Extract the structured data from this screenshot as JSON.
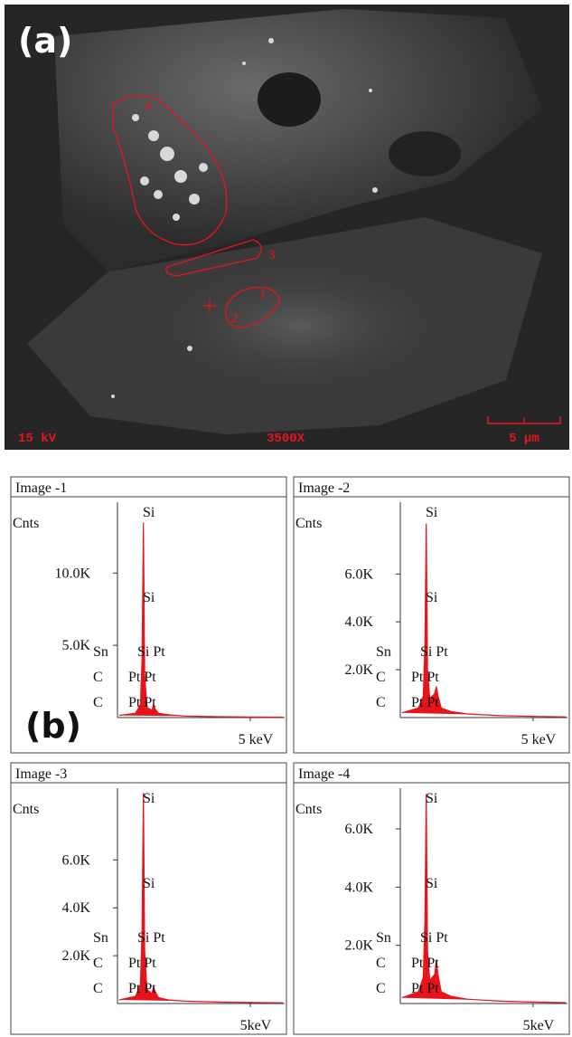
{
  "panel_a": {
    "label": "(a)",
    "voltage": "15 kV",
    "magnification": "3500X",
    "scale_bar": "5 µm",
    "regions": [
      "1",
      "2",
      "3",
      "4"
    ]
  },
  "panel_b_label": "(b)",
  "chart_data": [
    {
      "type": "spectrum",
      "title": "Image -1",
      "y_label": "Cnts",
      "color": "#e8141c",
      "x": [
        1.0,
        1.5,
        1.65,
        1.7,
        1.74,
        1.78,
        1.85,
        2.0,
        2.05,
        2.1,
        2.2,
        2.5,
        3.0,
        4.0,
        5.0,
        6.0
      ],
      "values": [
        150,
        300,
        900,
        4000,
        13500,
        3000,
        700,
        500,
        900,
        600,
        300,
        200,
        100,
        60,
        40,
        30
      ],
      "xlim": [
        0.95,
        6.05
      ],
      "ylim": [
        0,
        14900
      ],
      "xticks": [
        {
          "value": 5,
          "label": "5 keV"
        }
      ],
      "yticks": [
        {
          "value": 5000,
          "label": "5.0K"
        },
        {
          "value": 10000,
          "label": "10.0K"
        }
      ],
      "annotations": [
        "Si",
        "Si",
        "Sn",
        "Si Pt",
        "C",
        "Pt Pt",
        "C",
        "Pt Pt"
      ]
    },
    {
      "type": "spectrum",
      "title": "Image -2",
      "y_label": "Cnts",
      "color": "#e8141c",
      "x": [
        1.0,
        1.5,
        1.65,
        1.7,
        1.74,
        1.78,
        1.85,
        2.0,
        2.05,
        2.1,
        2.2,
        2.5,
        3.0,
        4.0,
        5.0,
        6.0
      ],
      "values": [
        200,
        400,
        900,
        3000,
        8100,
        2000,
        800,
        1000,
        1300,
        900,
        400,
        250,
        150,
        80,
        50,
        30
      ],
      "xlim": [
        0.95,
        6.05
      ],
      "ylim": [
        0,
        9000
      ],
      "xticks": [
        {
          "value": 5,
          "label": "5 keV"
        }
      ],
      "yticks": [
        {
          "value": 2000,
          "label": "2.0K"
        },
        {
          "value": 4000,
          "label": "4.0K"
        },
        {
          "value": 6000,
          "label": "6.0K"
        }
      ],
      "annotations": [
        "Si",
        "Si",
        "Sn",
        "Si Pt",
        "C",
        "Pt Pt",
        "C",
        "Pt Pt"
      ]
    },
    {
      "type": "spectrum",
      "title": "Image -3",
      "y_label": "Cnts",
      "color": "#e8141c",
      "x": [
        1.0,
        1.5,
        1.65,
        1.7,
        1.74,
        1.78,
        1.85,
        2.0,
        2.05,
        2.1,
        2.2,
        2.5,
        3.0,
        4.0,
        5.0,
        6.0
      ],
      "values": [
        150,
        300,
        800,
        3000,
        8800,
        2200,
        600,
        400,
        700,
        500,
        250,
        150,
        100,
        60,
        40,
        30
      ],
      "xlim": [
        0.95,
        6.05
      ],
      "ylim": [
        0,
        9000
      ],
      "xticks": [
        {
          "value": 5,
          "label": "5keV"
        }
      ],
      "yticks": [
        {
          "value": 2000,
          "label": "2.0K"
        },
        {
          "value": 4000,
          "label": "4.0K"
        },
        {
          "value": 6000,
          "label": "6.0K"
        }
      ],
      "annotations": [
        "Si",
        "Si",
        "Sn",
        "Si Pt",
        "C",
        "Pt Pt",
        "C",
        "Pt Pt"
      ]
    },
    {
      "type": "spectrum",
      "title": "Image -4",
      "y_label": "Cnts",
      "color": "#e8141c",
      "x": [
        1.0,
        1.5,
        1.65,
        1.7,
        1.74,
        1.78,
        1.85,
        2.0,
        2.05,
        2.1,
        2.2,
        2.5,
        3.0,
        4.0,
        5.0,
        6.0
      ],
      "values": [
        200,
        400,
        900,
        2800,
        7200,
        1800,
        800,
        1000,
        1500,
        1000,
        400,
        250,
        150,
        80,
        50,
        30
      ],
      "xlim": [
        0.95,
        6.05
      ],
      "ylim": [
        0,
        7400
      ],
      "xticks": [
        {
          "value": 5,
          "label": "5keV"
        }
      ],
      "yticks": [
        {
          "value": 2000,
          "label": "2.0K"
        },
        {
          "value": 4000,
          "label": "4.0K"
        },
        {
          "value": 6000,
          "label": "6.0K"
        }
      ],
      "annotations": [
        "Si",
        "Si",
        "Sn",
        "Si Pt",
        "C",
        "Pt Pt",
        "C",
        "Pt Pt"
      ]
    }
  ]
}
